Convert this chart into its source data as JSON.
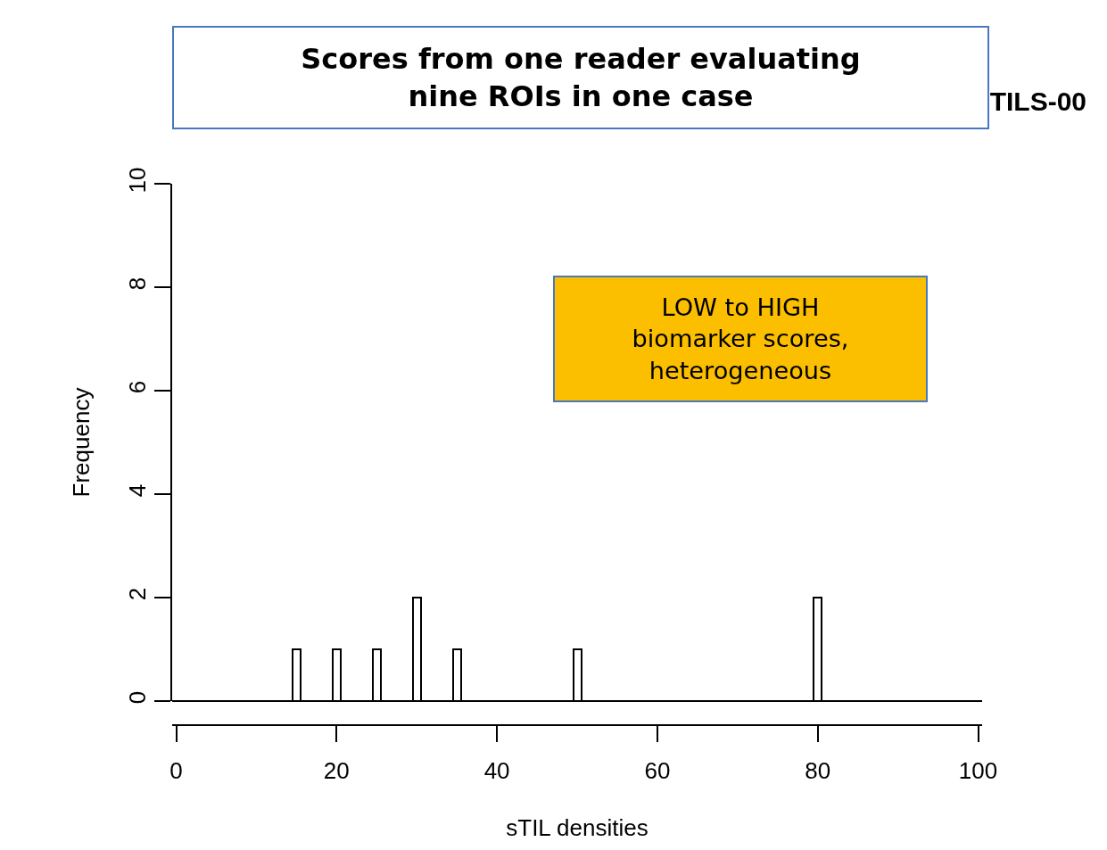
{
  "chart_data": {
    "type": "histogram",
    "title": "TILS-00",
    "xlabel": "sTIL densities",
    "ylabel": "Frequency",
    "bins": [
      -0.5,
      0.5,
      1.5,
      2.5,
      3.5,
      4.5,
      5.5,
      6.5,
      7.5,
      8.5,
      9.5,
      10.5,
      11.5,
      12.5,
      13.5,
      14.5,
      15.5,
      16.5,
      17.5,
      18.5,
      19.5,
      20.5,
      21.5,
      22.5,
      23.5,
      24.5,
      25.5,
      26.5,
      27.5,
      28.5,
      29.5,
      30.5,
      31.5,
      32.5,
      33.5,
      34.5,
      35.5,
      36.5,
      37.5,
      38.5,
      39.5,
      40.5,
      41.5,
      42.5,
      43.5,
      44.5,
      45.5,
      46.5,
      47.5,
      48.5,
      49.5,
      50.5,
      51.5,
      52.5,
      53.5,
      54.5,
      55.5,
      56.5,
      57.5,
      58.5,
      59.5,
      60.5,
      61.5,
      62.5,
      63.5,
      64.5,
      65.5,
      66.5,
      67.5,
      68.5,
      69.5,
      70.5,
      71.5,
      72.5,
      73.5,
      74.5,
      75.5,
      76.5,
      77.5,
      78.5,
      79.5,
      80.5,
      81.5,
      82.5,
      83.5,
      84.5,
      85.5,
      86.5,
      87.5,
      88.5,
      89.5,
      90.5,
      91.5,
      92.5,
      93.5,
      94.5,
      95.5,
      96.5,
      97.5,
      98.5,
      99.5,
      100.5
    ],
    "values": [
      0,
      0,
      0,
      0,
      0,
      0,
      0,
      0,
      0,
      0,
      0,
      0,
      0,
      0,
      0,
      1,
      0,
      0,
      0,
      0,
      1,
      0,
      0,
      0,
      0,
      1,
      0,
      0,
      0,
      0,
      2,
      0,
      0,
      0,
      0,
      1,
      0,
      0,
      0,
      0,
      0,
      0,
      0,
      0,
      0,
      0,
      0,
      0,
      0,
      0,
      1,
      0,
      0,
      0,
      0,
      0,
      0,
      0,
      0,
      0,
      0,
      0,
      0,
      0,
      0,
      0,
      0,
      0,
      0,
      0,
      0,
      0,
      0,
      0,
      0,
      0,
      0,
      0,
      0,
      0,
      2,
      0,
      0,
      0,
      0,
      0,
      0,
      0,
      0,
      0,
      0,
      0,
      0,
      0,
      0,
      0,
      0,
      0,
      0,
      0,
      0
    ],
    "color": "#ffffff",
    "xlim": [
      -0.5,
      100.5
    ],
    "xticks": [
      0,
      20,
      40,
      60,
      80,
      100
    ],
    "ylim": [
      0,
      10
    ],
    "yticks": [
      0,
      2,
      4,
      6,
      8,
      10
    ],
    "annotations": [
      "Scores from one reader evaluating\nnine ROIs in one case",
      "LOW to HIGH\nbiomarker scores,\nheterogeneous"
    ]
  }
}
